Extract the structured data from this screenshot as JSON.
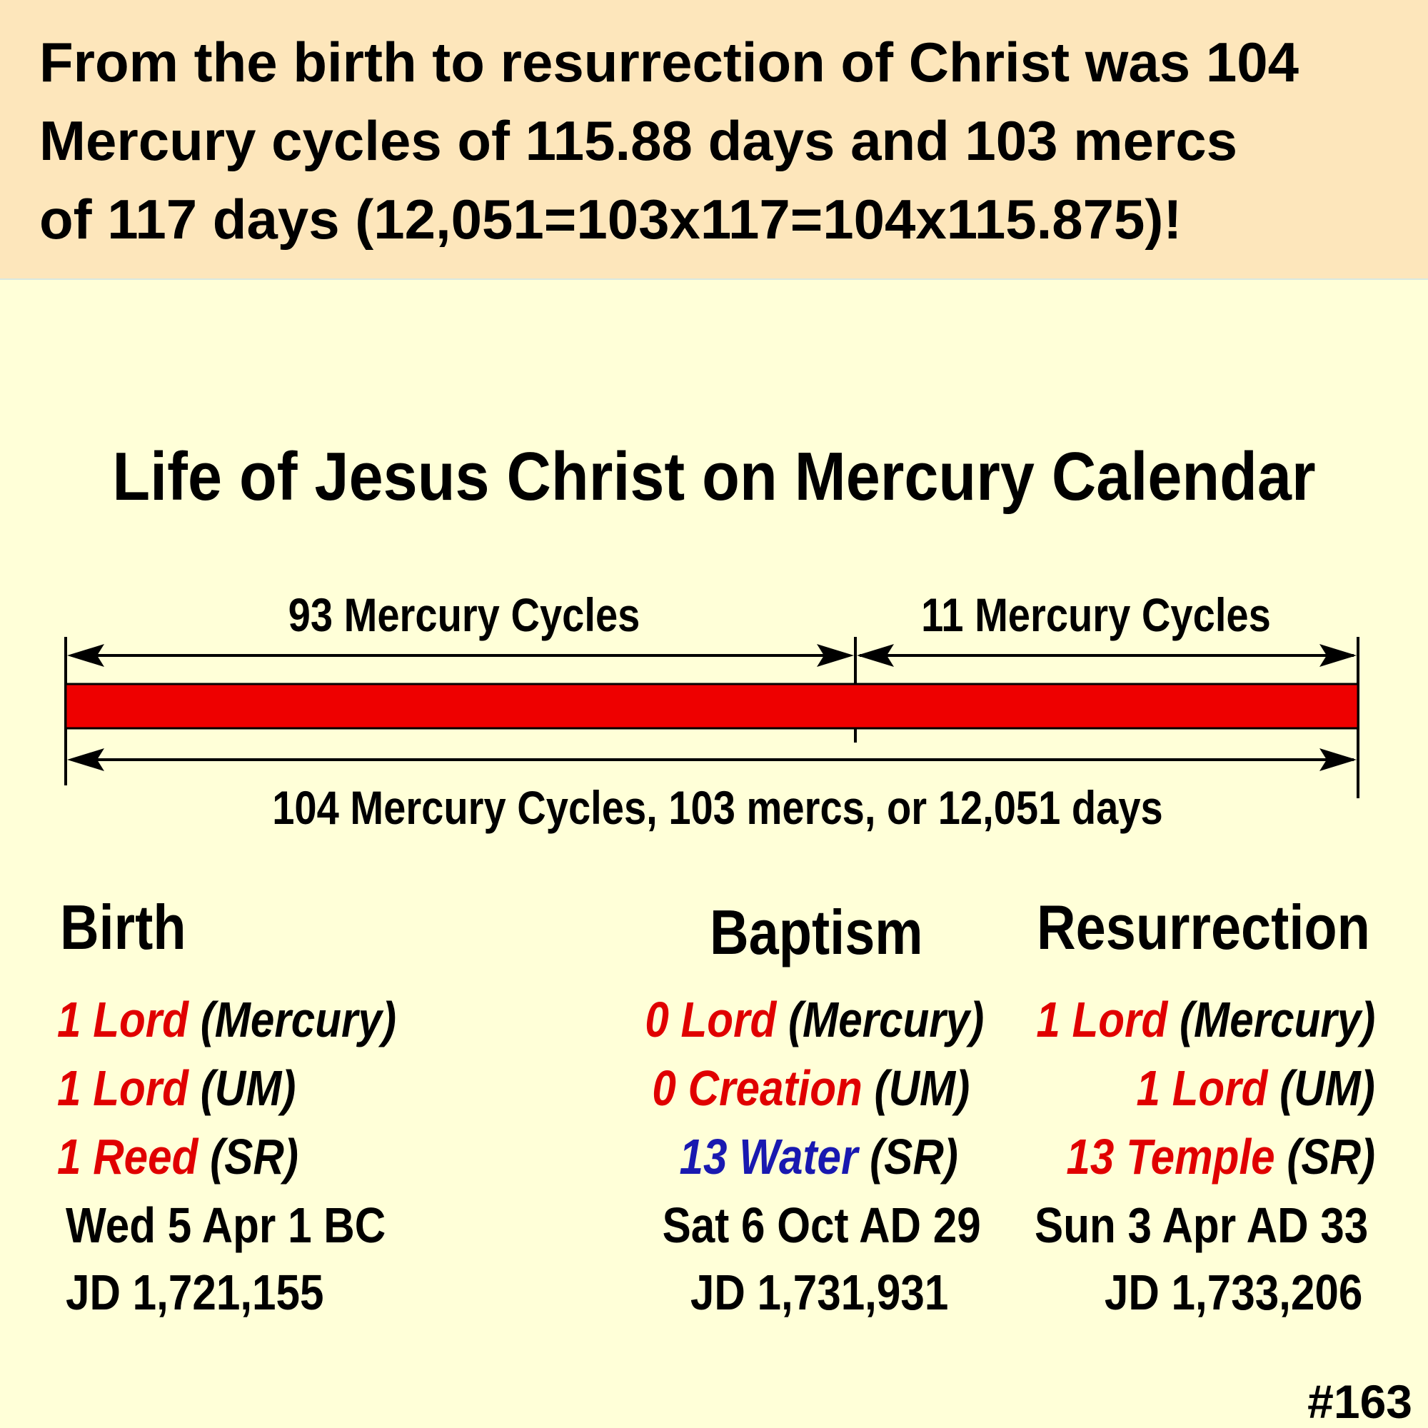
{
  "header": {
    "lines": [
      "From the birth to resurrection of Christ was 104",
      "Mercury cycles of 115.88 days and 103 mercs",
      "of 117 days (12,051=103x117=104x115.875)!"
    ]
  },
  "title": "Life of Jesus Christ on Mercury Calendar",
  "timeline": {
    "segment1_label": "93 Mercury Cycles",
    "segment2_label": "11 Mercury Cycles",
    "total_label": "104 Mercury Cycles, 103 mercs, or 12,051 days",
    "bar_color": "#ee0000"
  },
  "columns": {
    "birth": {
      "heading": "Birth",
      "row1": {
        "value": "1 Lord",
        "suffix": "(Mercury)"
      },
      "row2": {
        "value": "1 Lord",
        "suffix": "(UM)"
      },
      "row3": {
        "value": "1 Reed",
        "suffix": "(SR)"
      },
      "date": "Wed 5 Apr 1 BC",
      "jd": "JD 1,721,155"
    },
    "baptism": {
      "heading": "Baptism",
      "row1": {
        "value": "0 Lord",
        "suffix": "(Mercury)"
      },
      "row2": {
        "value": "0 Creation",
        "suffix": "(UM)"
      },
      "row3": {
        "value": "13 Water",
        "suffix": "(SR)"
      },
      "date": "Sat 6 Oct AD 29",
      "jd": "JD 1,731,931"
    },
    "resurrection": {
      "heading": "Resurrection",
      "row1": {
        "value": "1 Lord",
        "suffix": "(Mercury)"
      },
      "row2": {
        "value": "1 Lord",
        "suffix": "(UM)"
      },
      "row3": {
        "value": "13 Temple",
        "suffix": "(SR)"
      },
      "date": "Sun 3 Apr AD 33",
      "jd": "JD 1,733,206"
    }
  },
  "colors": {
    "red_text": "#e00000",
    "blue_text": "#1919b0"
  },
  "slide_number": "#163"
}
